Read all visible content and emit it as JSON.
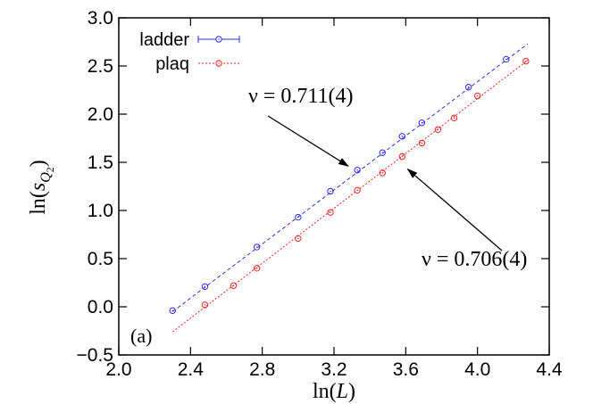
{
  "chart_data": {
    "type": "scatter",
    "title": "",
    "xlabel": "ln(L)",
    "ylabel": "ln(s_{Q_2})",
    "xlim": [
      2.0,
      4.4
    ],
    "ylim": [
      -0.5,
      3.0
    ],
    "xticks": [
      "2.0",
      "2.4",
      "2.8",
      "3.2",
      "3.6",
      "4.0",
      "4.4"
    ],
    "yticks": [
      "-0.5",
      "0.0",
      "0.5",
      "1.0",
      "1.5",
      "2.0",
      "2.5",
      "3.0"
    ],
    "legend_position": "top-left",
    "grid": false,
    "panel_label": "(a)",
    "series": [
      {
        "name": "ladder",
        "color": "#2b2bff",
        "marker": "circle",
        "x": [
          2.3,
          2.48,
          2.77,
          3.0,
          3.18,
          3.33,
          3.47,
          3.58,
          3.69,
          3.95,
          4.16
        ],
        "y": [
          -0.04,
          0.21,
          0.62,
          0.93,
          1.2,
          1.42,
          1.6,
          1.77,
          1.91,
          2.28,
          2.57
        ],
        "fit": {
          "x": [
            2.3,
            4.28
          ],
          "y": [
            -0.05,
            2.73
          ],
          "style": "dashed"
        }
      },
      {
        "name": "plaq",
        "color": "#ff2020",
        "marker": "circle",
        "x": [
          2.48,
          2.64,
          2.77,
          3.0,
          3.18,
          3.33,
          3.47,
          3.58,
          3.69,
          3.78,
          3.87,
          4.0,
          4.27
        ],
        "y": [
          0.02,
          0.22,
          0.4,
          0.71,
          0.98,
          1.21,
          1.39,
          1.56,
          1.7,
          1.84,
          1.96,
          2.19,
          2.55
        ],
        "fit": {
          "x": [
            2.3,
            4.28
          ],
          "y": [
            -0.26,
            2.56
          ],
          "style": "dotted"
        }
      }
    ],
    "annotations": [
      {
        "text": "ν = 0.711(4)",
        "arrow_to": {
          "x": 3.28,
          "y": 1.46
        },
        "target": "ladder"
      },
      {
        "text": "ν = 0.706(4)",
        "arrow_to": {
          "x": 3.61,
          "y": 1.43
        },
        "target": "plaq"
      }
    ]
  }
}
